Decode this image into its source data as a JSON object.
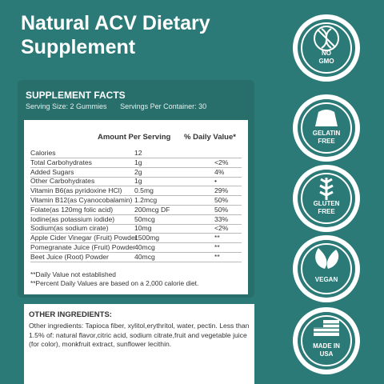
{
  "header": {
    "title": "Natural ACV Dietary Supplement"
  },
  "facts": {
    "title": "SUPPLEMENT FACTS",
    "serving_size": "Serving Size: 2 Gummies",
    "servings_per_container": "Servings Per Container: 30",
    "columns": [
      "Amount Per Serving",
      "% Daily Value*"
    ],
    "rows": [
      [
        "Calories",
        "12"
      ],
      [
        "Total Carbohydrates",
        "1g",
        "<2%"
      ],
      [
        "Added Sugars",
        "2g",
        "4%"
      ],
      [
        "Other Carbohydrates",
        "1g",
        "•"
      ],
      [
        "Vitamin B6(as pyridoxine HCl)",
        "0.5mg",
        "29%"
      ],
      [
        "Vitamin B12(as Cyanocobalamin)",
        "1.2mcg",
        "50%"
      ],
      [
        "Folate(as 120mg folic acid)",
        "200mcg DF",
        "50%"
      ],
      [
        "Iodine(as potassium iodide)",
        "50mcg",
        "33%"
      ],
      [
        "Sodium(as sodium cirate)",
        "10mg",
        "<2%"
      ],
      [
        "Apple Cider Vinegar (Fruit) Powder",
        "1500mg",
        "**"
      ],
      [
        "Pomegranate Juice (Fruit) Powder",
        "40mcg",
        "**"
      ],
      [
        "Beet Juice (Root) Powder",
        "40mcg",
        "**"
      ]
    ],
    "footnotes": [
      "**Daily Value not established",
      "**Percent Daily Values are based on a 2,000 calorie diet."
    ]
  },
  "other_ingredients": {
    "title": "OTHER INGREDIENTS:",
    "text": "Other ingredients: Tapioca fiber, xylitol,erythritol, water, pectin. Less than 1.5% of: natural flavor,citric acid, sodium citrate,fruit and vegetable juice (for color), monkfruit extract, sunflower lecithin."
  },
  "badges": [
    [
      "NO",
      "GMO"
    ],
    [
      "GELATIN",
      "FREE"
    ],
    [
      "GLUTEN",
      "FREE"
    ],
    [
      "VEGAN"
    ],
    [
      "MADE IN",
      "USA"
    ]
  ]
}
